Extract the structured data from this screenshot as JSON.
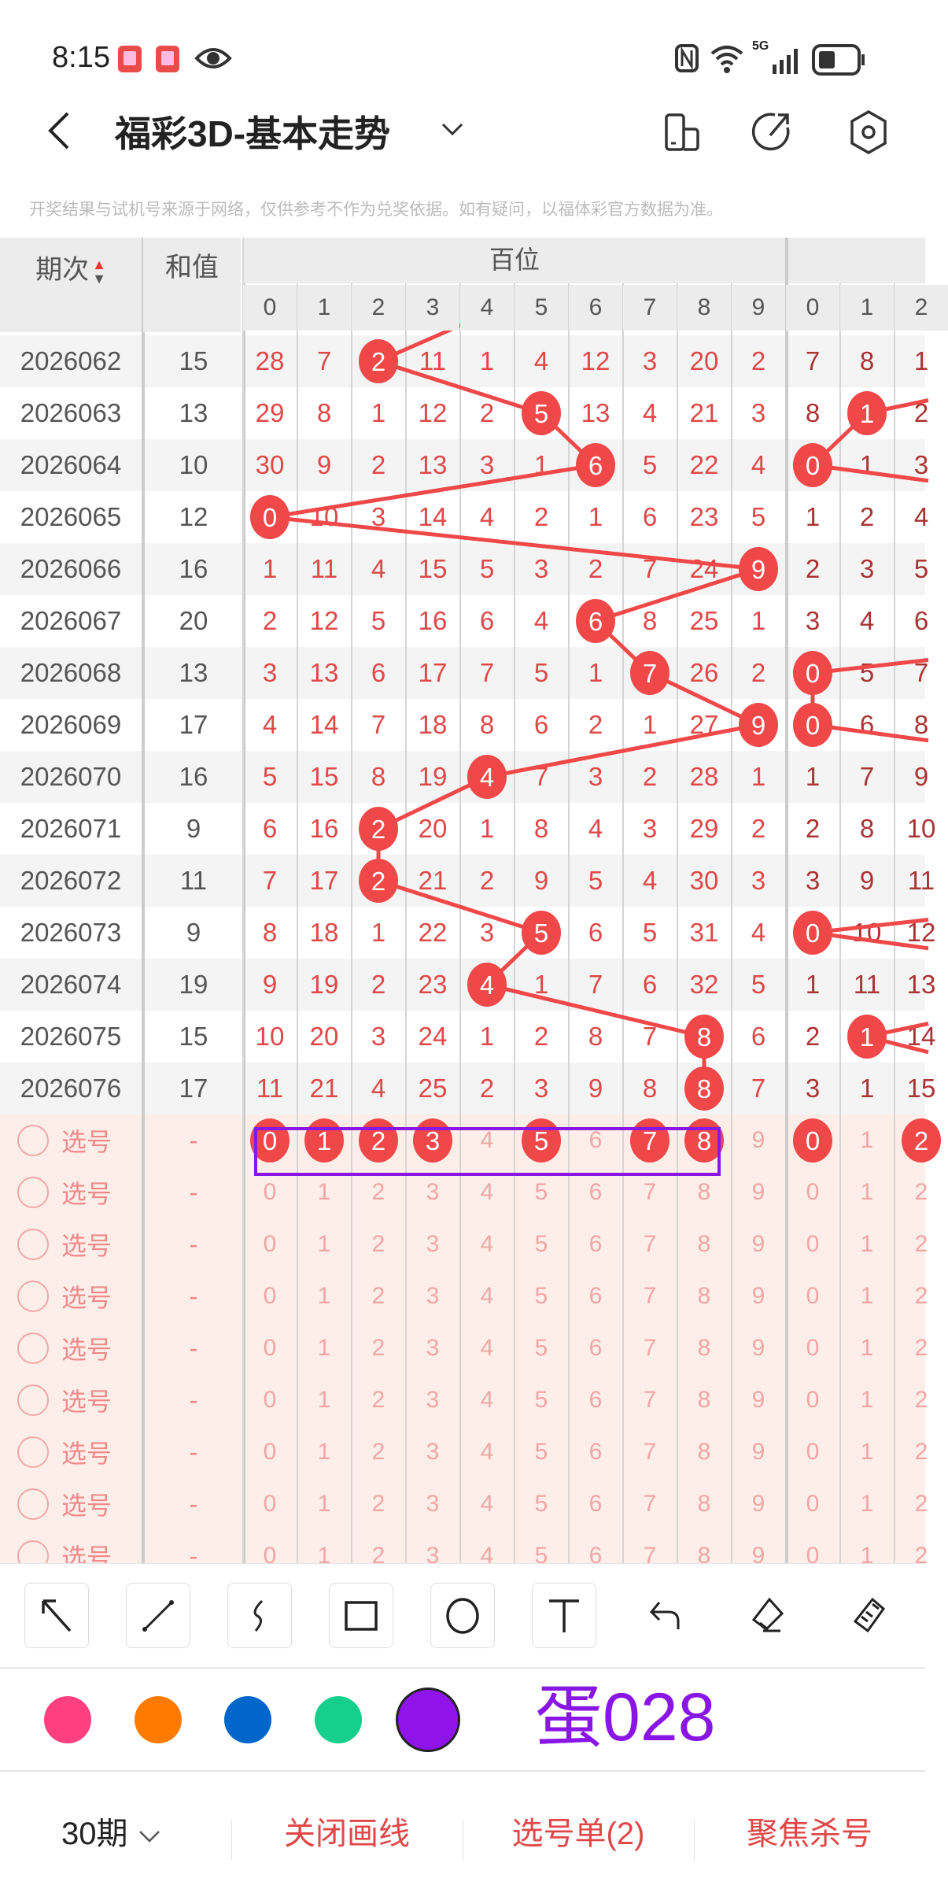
{
  "status_bar": {
    "time": "8:15",
    "network": "5G",
    "icons": [
      "book-icon",
      "book-icon",
      "eye-icon",
      "nfc-icon",
      "wifi-icon",
      "signal-icon",
      "battery-icon"
    ]
  },
  "header": {
    "title": "福彩3D-基本走势",
    "icons": [
      "back-icon",
      "chevron-down-icon",
      "layout-icon",
      "share-icon",
      "settings-icon"
    ]
  },
  "notice": "开奖结果与试机号来源于网络，仅供参考不作为兑奖依据。如有疑问，以福体彩官方数据为准。",
  "table": {
    "col_issue": "期次",
    "col_sum": "和值",
    "group_hundreds": "百位",
    "digits": [
      "0",
      "1",
      "2",
      "3",
      "4",
      "5",
      "6",
      "7",
      "8",
      "9"
    ],
    "tens_digits": [
      "0",
      "1",
      "2"
    ],
    "rows": [
      {
        "issue": "2026062",
        "sum": "15",
        "hundreds": [
          "28",
          "7",
          "2",
          "11",
          "1",
          "4",
          "12",
          "3",
          "20",
          "2"
        ],
        "h_hit": 2,
        "tens": [
          "7",
          "8",
          "1"
        ],
        "t_hit": null
      },
      {
        "issue": "2026063",
        "sum": "13",
        "hundreds": [
          "29",
          "8",
          "1",
          "12",
          "2",
          "5",
          "13",
          "4",
          "21",
          "3"
        ],
        "h_hit": 5,
        "tens": [
          "8",
          "1",
          "2"
        ],
        "t_hit": 1
      },
      {
        "issue": "2026064",
        "sum": "10",
        "hundreds": [
          "30",
          "9",
          "2",
          "13",
          "3",
          "1",
          "6",
          "5",
          "22",
          "4"
        ],
        "h_hit": 6,
        "tens": [
          "0",
          "1",
          "3"
        ],
        "t_hit": 0
      },
      {
        "issue": "2026065",
        "sum": "12",
        "hundreds": [
          "0",
          "10",
          "3",
          "14",
          "4",
          "2",
          "1",
          "6",
          "23",
          "5"
        ],
        "h_hit": 0,
        "tens": [
          "1",
          "2",
          "4"
        ],
        "t_hit": null
      },
      {
        "issue": "2026066",
        "sum": "16",
        "hundreds": [
          "1",
          "11",
          "4",
          "15",
          "5",
          "3",
          "2",
          "7",
          "24",
          "9"
        ],
        "h_hit": 9,
        "tens": [
          "2",
          "3",
          "5"
        ],
        "t_hit": null
      },
      {
        "issue": "2026067",
        "sum": "20",
        "hundreds": [
          "2",
          "12",
          "5",
          "16",
          "6",
          "4",
          "6",
          "8",
          "25",
          "1"
        ],
        "h_hit": 6,
        "tens": [
          "3",
          "4",
          "6"
        ],
        "t_hit": null
      },
      {
        "issue": "2026068",
        "sum": "13",
        "hundreds": [
          "3",
          "13",
          "6",
          "17",
          "7",
          "5",
          "1",
          "7",
          "26",
          "2"
        ],
        "h_hit": 7,
        "tens": [
          "0",
          "5",
          "7"
        ],
        "t_hit": 0
      },
      {
        "issue": "2026069",
        "sum": "17",
        "hundreds": [
          "4",
          "14",
          "7",
          "18",
          "8",
          "6",
          "2",
          "1",
          "27",
          "9"
        ],
        "h_hit": 9,
        "tens": [
          "0",
          "6",
          "8"
        ],
        "t_hit": 0
      },
      {
        "issue": "2026070",
        "sum": "16",
        "hundreds": [
          "5",
          "15",
          "8",
          "19",
          "4",
          "7",
          "3",
          "2",
          "28",
          "1"
        ],
        "h_hit": 4,
        "tens": [
          "1",
          "7",
          "9"
        ],
        "t_hit": null
      },
      {
        "issue": "2026071",
        "sum": "9",
        "hundreds": [
          "6",
          "16",
          "2",
          "20",
          "1",
          "8",
          "4",
          "3",
          "29",
          "2"
        ],
        "h_hit": 2,
        "tens": [
          "2",
          "8",
          "10"
        ],
        "t_hit": null
      },
      {
        "issue": "2026072",
        "sum": "11",
        "hundreds": [
          "7",
          "17",
          "2",
          "21",
          "2",
          "9",
          "5",
          "4",
          "30",
          "3"
        ],
        "h_hit": 2,
        "tens": [
          "3",
          "9",
          "11"
        ],
        "t_hit": null
      },
      {
        "issue": "2026073",
        "sum": "9",
        "hundreds": [
          "8",
          "18",
          "1",
          "22",
          "3",
          "5",
          "6",
          "5",
          "31",
          "4"
        ],
        "h_hit": 5,
        "tens": [
          "0",
          "10",
          "12"
        ],
        "t_hit": 0
      },
      {
        "issue": "2026074",
        "sum": "19",
        "hundreds": [
          "9",
          "19",
          "2",
          "23",
          "4",
          "1",
          "7",
          "6",
          "32",
          "5"
        ],
        "h_hit": 4,
        "tens": [
          "1",
          "11",
          "13"
        ],
        "t_hit": null
      },
      {
        "issue": "2026075",
        "sum": "15",
        "hundreds": [
          "10",
          "20",
          "3",
          "24",
          "1",
          "2",
          "8",
          "7",
          "8",
          "6"
        ],
        "h_hit": 8,
        "tens": [
          "2",
          "1",
          "14"
        ],
        "t_hit": 1
      },
      {
        "issue": "2026076",
        "sum": "17",
        "hundreds": [
          "11",
          "21",
          "4",
          "25",
          "2",
          "3",
          "9",
          "8",
          "8",
          "7"
        ],
        "h_hit": 8,
        "tens": [
          "3",
          "1",
          "15"
        ],
        "t_hit": null
      }
    ],
    "pick_label": "选号",
    "pick_sum": "-",
    "pick_rows": 9,
    "pick_selected_hundreds": [
      0,
      1,
      2,
      3,
      5,
      7,
      8
    ],
    "pick_selected_tens": [
      0,
      2
    ],
    "ball_color": "#f04848"
  },
  "annotation": {
    "text": "蛋028",
    "color": "#8a16e6"
  },
  "toolbar": {
    "tools": [
      "arrow-tool",
      "line-tool",
      "freehand-tool",
      "rectangle-tool",
      "circle-tool",
      "text-tool",
      "undo",
      "eraser",
      "clear-all"
    ]
  },
  "colors": {
    "options": [
      "#ff3f7f",
      "#ff7a00",
      "#0066cc",
      "#16cf8f",
      "#9013ea"
    ],
    "selected": "#9013ea"
  },
  "bottom": {
    "period": "30期",
    "close_lines": "关闭画线",
    "pick_list": "选号单(2)",
    "focus_kill": "聚焦杀号"
  }
}
